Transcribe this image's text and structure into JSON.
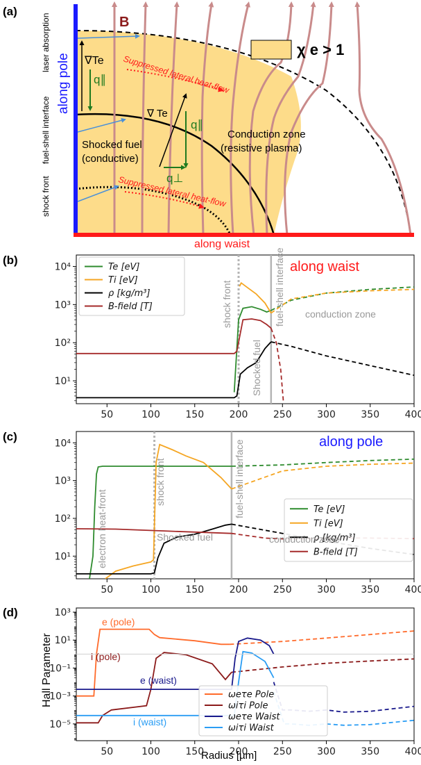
{
  "panels": {
    "a": {
      "label": "(a)",
      "labels": {
        "B": "B",
        "laser_absorption": "laser absorption",
        "along_pole": "along pole",
        "grad_te_1": "∇Te",
        "q_par_1": "q∥",
        "grad_te_2": "∇ Te",
        "q_par_2": "q∥",
        "q_perp": "q⊥",
        "suppressed_1": "Suppressed lateral heat-flow",
        "suppressed_2": "Suppressed lateral heat-flow",
        "chi": "χ e > 1",
        "fuel_shell": "fuel-shell interface",
        "shocked_fuel": "Shocked fuel",
        "conductive": "(conductive)",
        "conduction_zone": "Conduction zone",
        "resistive": "(resistive plasma)",
        "shock_front": "shock front",
        "along_waist": "along waist"
      },
      "colors": {
        "shell": "#fddc8a",
        "field_line": "#c98b8b",
        "pole_axis": "#1a1aff",
        "waist_axis": "#ff1a1a"
      }
    },
    "b": {
      "label": "(b)",
      "title": "along waist",
      "annotations": {
        "shock_front": "shock front",
        "fuel_shell": "fuel-shell interface",
        "shocked_fuel": "Shocked fuel",
        "conduction_zone": "conduction zone"
      },
      "legend": [
        "Te [eV]",
        "Ti [eV]",
        "ρ [kg/m³]",
        "B-field [T]"
      ]
    },
    "c": {
      "label": "(c)",
      "title": "along pole",
      "annotations": {
        "electron_heat_front": "electron heat-front",
        "shock_front": "shock front",
        "fuel_shell": "fuel-shell interface",
        "shocked_fuel": "Shocked fuel",
        "conduction_zone": "conduction zone"
      },
      "legend": [
        "Te [eV]",
        "Ti [eV]",
        "ρ [kg/m³]",
        "B-field [T]"
      ]
    },
    "d": {
      "label": "(d)",
      "ylabel": "Hall Parameter",
      "xlabel": "Radius [µm]",
      "annotations": {
        "e_pole": "e (pole)",
        "i_pole": "i (pole)",
        "e_waist": "e (waist)",
        "i_waist": "i (waist)"
      },
      "legend": [
        "ωeτe Pole",
        "ωiτi Pole",
        "ωeτe Waist",
        "ωiτi Waist"
      ]
    }
  },
  "chart_data": [
    {
      "type": "line",
      "title": "along waist",
      "xlim": [
        15,
        400
      ],
      "ylim_log10": [
        0.4,
        4.3
      ],
      "log_y": true,
      "x_ticks": [
        50,
        100,
        150,
        200,
        250,
        300,
        350,
        400
      ],
      "y_ticks": [
        "10^1",
        "10^2",
        "10^3",
        "10^4"
      ],
      "markers": {
        "shock_front_dotted": 200,
        "fuel_shell_solid": 237
      },
      "series": [
        {
          "name": "Te [eV]",
          "color": "#2e8b2e",
          "x": [
            195,
            200,
            205,
            215,
            225,
            232,
            237
          ],
          "y": [
            5,
            400,
            800,
            880,
            750,
            640,
            700
          ],
          "dashed_x": [
            237,
            260,
            300,
            350,
            400
          ],
          "dashed_y": [
            700,
            1300,
            2000,
            2500,
            2900
          ]
        },
        {
          "name": "Ti [eV]",
          "color": "#f5a623",
          "x": [
            201,
            203,
            210,
            220,
            230,
            237
          ],
          "y": [
            3000,
            3700,
            2800,
            1900,
            1100,
            600
          ],
          "dashed_x": [
            237,
            260,
            300,
            350,
            400
          ],
          "dashed_y": [
            600,
            1400,
            2000,
            2300,
            2500
          ]
        },
        {
          "name": "ρ [kg/m³]",
          "color": "#000000",
          "x": [
            15,
            195,
            198,
            202,
            210,
            220,
            230,
            237
          ],
          "y": [
            3.6,
            3.6,
            4,
            15,
            22,
            30,
            70,
            105
          ],
          "dashed_x": [
            237,
            260,
            300,
            350,
            400
          ],
          "dashed_y": [
            105,
            80,
            45,
            25,
            14
          ]
        },
        {
          "name": "B-field [T]",
          "color": "#a52a2a",
          "x": [
            15,
            195,
            198,
            205,
            215,
            225,
            232,
            237
          ],
          "y": [
            52,
            52,
            60,
            400,
            420,
            380,
            300,
            240
          ],
          "dashed_x": [
            237,
            243,
            248,
            251
          ],
          "dashed_y": [
            240,
            100,
            20,
            3
          ]
        }
      ]
    },
    {
      "type": "line",
      "title": "along pole",
      "xlim": [
        15,
        400
      ],
      "ylim_log10": [
        0.4,
        4.3
      ],
      "log_y": true,
      "x_ticks": [
        50,
        100,
        150,
        200,
        250,
        300,
        350,
        400
      ],
      "y_ticks": [
        "10^1",
        "10^2",
        "10^3",
        "10^4"
      ],
      "markers": {
        "shock_front_dotted": 104,
        "fuel_shell_solid": 192
      },
      "series": [
        {
          "name": "Te [eV]",
          "color": "#2e8b2e",
          "x": [
            30,
            34,
            36,
            38,
            40,
            45,
            60,
            100,
            150,
            192
          ],
          "y": [
            2.5,
            10,
            200,
            1500,
            2300,
            2400,
            2400,
            2400,
            2400,
            2400
          ],
          "dashed_x": [
            192,
            250,
            300,
            350,
            400
          ],
          "dashed_y": [
            2400,
            2600,
            3000,
            3400,
            3700
          ]
        },
        {
          "name": "Ti [eV]",
          "color": "#f5a623",
          "x": [
            48,
            60,
            80,
            100,
            103,
            106,
            110,
            125,
            140,
            160,
            180,
            192
          ],
          "y": [
            2.5,
            4,
            5.5,
            7,
            8,
            3000,
            9000,
            6500,
            4500,
            3000,
            1200,
            600
          ],
          "dashed_x": [
            192,
            250,
            300,
            350,
            400
          ],
          "dashed_y": [
            600,
            1800,
            2400,
            2700,
            2900
          ]
        },
        {
          "name": "ρ [kg/m³]",
          "color": "#000000",
          "x": [
            15,
            100,
            104,
            108,
            115,
            130,
            150,
            170,
            185,
            192
          ],
          "y": [
            3.4,
            3.4,
            3.6,
            9,
            22,
            32,
            38,
            52,
            66,
            70
          ],
          "dashed_x": [
            192,
            250,
            300,
            350,
            400
          ],
          "dashed_y": [
            70,
            40,
            25,
            16,
            11
          ]
        },
        {
          "name": "B-field [T]",
          "color": "#a52a2a",
          "x": [
            15,
            60,
            120,
            192
          ],
          "y": [
            53,
            52,
            46,
            40
          ],
          "dashed_x": [
            192,
            230,
            260,
            300,
            350,
            400
          ],
          "dashed_y": [
            40,
            30,
            28,
            30,
            30,
            29
          ]
        }
      ]
    },
    {
      "type": "line",
      "ylabel": "Hall Parameter",
      "xlabel": "Radius [µm]",
      "xlim": [
        15,
        400
      ],
      "ylim_log10": [
        -6.2,
        3.3
      ],
      "log_y": true,
      "x_ticks": [
        50,
        100,
        150,
        200,
        250,
        300,
        350,
        400
      ],
      "y_ticks": [
        "10^-5",
        "10^-3",
        "10^-1",
        "10^1",
        "10^3"
      ],
      "series": [
        {
          "name": "ωeτe Pole",
          "color": "#ff6a2a",
          "x": [
            15,
            35,
            38,
            42,
            55,
            98,
            104,
            110,
            150,
            180,
            190
          ],
          "y": [
            0.001,
            0.001,
            1,
            60,
            60,
            60,
            25,
            15,
            9,
            5,
            5
          ],
          "dashed_x": [
            190,
            250,
            300,
            350,
            400
          ],
          "dashed_y": [
            5,
            8,
            14,
            25,
            45
          ]
        },
        {
          "name": "ωiτi Pole",
          "color": "#8b1a1a",
          "x": [
            15,
            40,
            45,
            55,
            95,
            100,
            106,
            115,
            140,
            170,
            185,
            192
          ],
          "y": [
            1.2e-05,
            1.2e-05,
            4e-05,
            0.0001,
            0.0002,
            0.003,
            0.5,
            1.3,
            0.9,
            0.2,
            0.015,
            0.05
          ],
          "dashed_x": [
            192,
            250,
            300,
            350,
            400
          ],
          "dashed_y": [
            0.05,
            0.12,
            0.22,
            0.32,
            0.45
          ]
        },
        {
          "name": "ωeτe Waist",
          "color": "#1a1a8c",
          "x": [
            15,
            192,
            196,
            200,
            210,
            225,
            235,
            240
          ],
          "y": [
            0.003,
            0.003,
            0.5,
            8,
            14,
            10,
            4,
            1
          ],
          "dashed_x": [
            240,
            250,
            260,
            280,
            300,
            320,
            350,
            400
          ],
          "dashed_y": [
            0.01,
            0.0001,
            0.0001,
            8e-05,
            0.0001,
            7e-05,
            8e-05,
            0.00018
          ]
        },
        {
          "name": "ωiτi Waist",
          "color": "#2a9df4",
          "x": [
            15,
            195,
            200,
            205,
            215,
            230,
            240
          ],
          "y": [
            4e-05,
            4e-05,
            0.01,
            1.5,
            1.2,
            0.3,
            0.02
          ],
          "dashed_x": [
            240,
            252,
            260,
            280,
            300,
            320,
            350,
            400
          ],
          "dashed_y": [
            0.002,
            1e-05,
            1e-05,
            8e-06,
            1e-05,
            8e-06,
            9e-06,
            1.8e-05
          ]
        }
      ]
    }
  ]
}
